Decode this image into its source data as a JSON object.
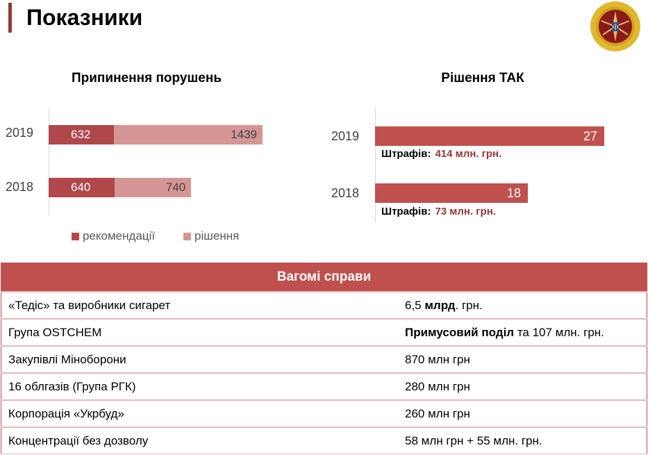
{
  "header": {
    "title": "Показники"
  },
  "colors": {
    "recommendations": "#b0474a",
    "decisions": "#d69595",
    "tak": "#c0504d",
    "accent": "#953735"
  },
  "chart_data": [
    {
      "type": "bar",
      "orientation": "horizontal",
      "stacked": true,
      "title": "Припинення порушень",
      "categories": [
        "2019",
        "2018"
      ],
      "series": [
        {
          "name": "рекомендації",
          "values": [
            632,
            640
          ]
        },
        {
          "name": "рішення",
          "values": [
            1439,
            740
          ]
        }
      ],
      "legend": "bottom"
    },
    {
      "type": "bar",
      "orientation": "horizontal",
      "title": "Рішення ТАК",
      "categories": [
        "2019",
        "2018"
      ],
      "series": [
        {
          "name": "Рішення ТАК",
          "values": [
            27,
            18
          ]
        }
      ],
      "annotations": [
        {
          "label": "Штрафів:",
          "value": "414 млн. грн."
        },
        {
          "label": "Штрафів:",
          "value": "73 млн. грн."
        }
      ]
    }
  ],
  "table": {
    "title": "Вагомі справи",
    "rows": [
      {
        "case": "«Тедіс» та виробники сигарет",
        "pre": "6,5 ",
        "bold": "млрд",
        "post": ". грн."
      },
      {
        "case": "Група OSTCHEM",
        "pre": "",
        "bold": "Примусовий поділ",
        "post": " та 107 млн. грн."
      },
      {
        "case": "Закупівлі Міноборони",
        "pre": "870 млн грн",
        "bold": "",
        "post": ""
      },
      {
        "case": "16 облгазів (Група РГК)",
        "pre": "280 млн грн",
        "bold": "",
        "post": ""
      },
      {
        "case": "Корпорація «Укрбуд»",
        "pre": "260 млн грн",
        "bold": "",
        "post": ""
      },
      {
        "case": "Концентрації без дозволу",
        "pre": "58 млн грн + 55 млн. грн.",
        "bold": "",
        "post": ""
      }
    ]
  }
}
